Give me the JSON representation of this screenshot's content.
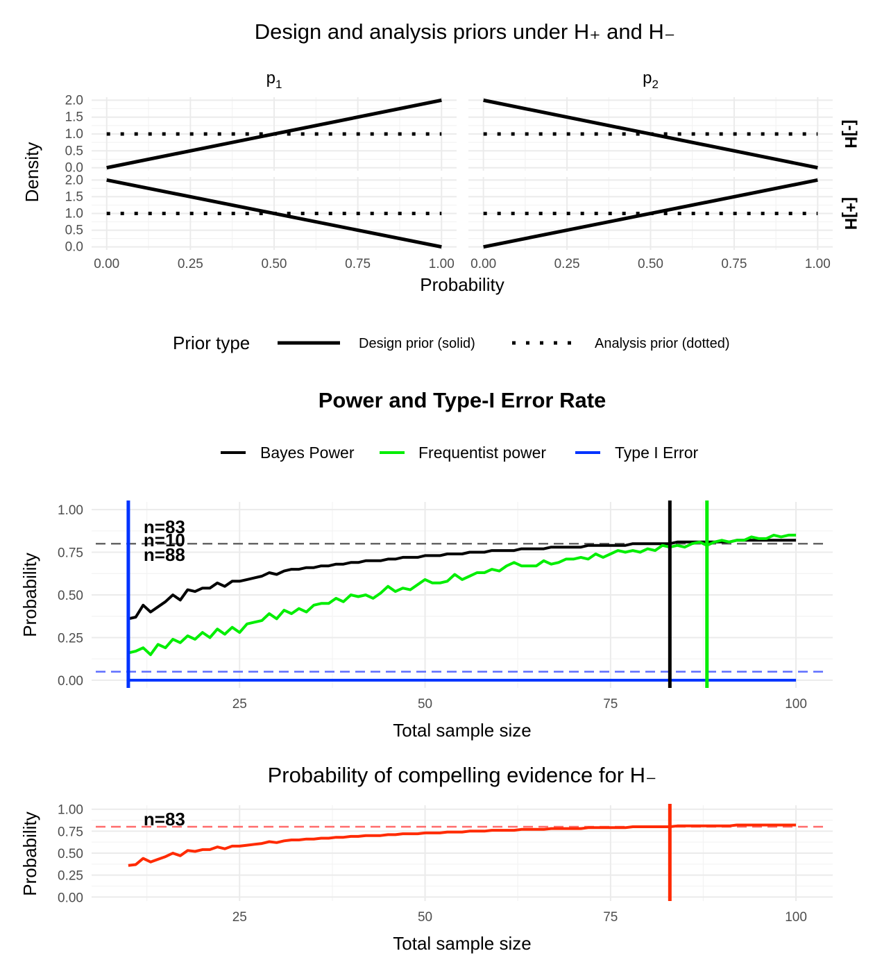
{
  "chart_data": [
    {
      "type": "line",
      "title": "Design and analysis priors under H₊ and H₋",
      "xlabel": "Probability",
      "ylabel": "Density",
      "xlim": [
        0,
        1
      ],
      "ylim": [
        0,
        2
      ],
      "x_ticks": [
        "0.00",
        "0.25",
        "0.50",
        "0.75",
        "1.00"
      ],
      "y_ticks": [
        "0.0",
        "0.5",
        "1.0",
        "1.5",
        "2.0"
      ],
      "facet_columns": [
        "p1",
        "p2"
      ],
      "facet_rows": [
        "[-]H",
        "[+]H"
      ],
      "legend": {
        "title": "Prior type",
        "position": "bottom",
        "entries": [
          "Design prior (solid)",
          "Analysis prior (dotted)"
        ]
      },
      "panels": [
        {
          "row": "[-]H",
          "col": "p1",
          "design": [
            [
              0,
              0
            ],
            [
              1,
              2
            ]
          ],
          "analysis": [
            [
              0,
              1
            ],
            [
              1,
              1
            ]
          ]
        },
        {
          "row": "[-]H",
          "col": "p2",
          "design": [
            [
              0,
              2
            ],
            [
              1,
              0
            ]
          ],
          "analysis": [
            [
              0,
              1
            ],
            [
              1,
              1
            ]
          ]
        },
        {
          "row": "[+]H",
          "col": "p1",
          "design": [
            [
              0,
              2
            ],
            [
              1,
              0
            ]
          ],
          "analysis": [
            [
              0,
              1
            ],
            [
              1,
              1
            ]
          ]
        },
        {
          "row": "[+]H",
          "col": "p2",
          "design": [
            [
              0,
              0
            ],
            [
              1,
              2
            ]
          ],
          "analysis": [
            [
              0,
              1
            ],
            [
              1,
              1
            ]
          ]
        }
      ],
      "grid": true
    },
    {
      "type": "line",
      "title": "Power and Type-I Error Rate",
      "xlabel": "Total sample size",
      "ylabel": "Probability",
      "xlim": [
        10,
        100
      ],
      "ylim": [
        0,
        1
      ],
      "x_ticks": [
        "25",
        "50",
        "75",
        "100"
      ],
      "y_ticks": [
        "0.00",
        "0.25",
        "0.50",
        "0.75",
        "1.00"
      ],
      "legend": {
        "position": "top",
        "entries": [
          "Bayes Power",
          "Frequentist power",
          "Type I Error"
        ]
      },
      "reference_lines": [
        {
          "y": 0.8,
          "color": "#666666",
          "style": "dashed"
        },
        {
          "y": 0.05,
          "color": "#5b6cff",
          "style": "dashed"
        }
      ],
      "vertical_lines": [
        {
          "x": 10,
          "color": "#0033ff"
        },
        {
          "x": 83,
          "color": "#000000"
        },
        {
          "x": 88,
          "color": "#00ee00"
        }
      ],
      "annotations": [
        {
          "text": "n=83",
          "color": "#000000"
        },
        {
          "text": "n=10",
          "color": "#0033ff"
        },
        {
          "text": "n=88",
          "color": "#00ee00"
        }
      ],
      "series": [
        {
          "name": "Bayes Power",
          "color": "#000000",
          "x": [
            10,
            11,
            12,
            13,
            14,
            15,
            16,
            17,
            18,
            19,
            20,
            21,
            22,
            23,
            24,
            25,
            26,
            27,
            28,
            29,
            30,
            31,
            32,
            33,
            34,
            35,
            36,
            37,
            38,
            39,
            40,
            41,
            42,
            43,
            44,
            45,
            46,
            47,
            48,
            49,
            50,
            51,
            52,
            53,
            54,
            55,
            56,
            57,
            58,
            59,
            60,
            61,
            62,
            63,
            64,
            65,
            66,
            67,
            68,
            69,
            70,
            71,
            72,
            73,
            74,
            75,
            76,
            77,
            78,
            79,
            80,
            81,
            82,
            83,
            84,
            85,
            86,
            87,
            88,
            89,
            90,
            91,
            92,
            93,
            94,
            95,
            96,
            97,
            98,
            99,
            100
          ],
          "values": [
            0.36,
            0.37,
            0.44,
            0.4,
            0.43,
            0.46,
            0.5,
            0.47,
            0.53,
            0.52,
            0.54,
            0.54,
            0.57,
            0.55,
            0.58,
            0.58,
            0.59,
            0.6,
            0.61,
            0.63,
            0.62,
            0.64,
            0.65,
            0.65,
            0.66,
            0.66,
            0.67,
            0.67,
            0.68,
            0.68,
            0.69,
            0.69,
            0.7,
            0.7,
            0.7,
            0.71,
            0.71,
            0.72,
            0.72,
            0.72,
            0.73,
            0.73,
            0.73,
            0.74,
            0.74,
            0.74,
            0.75,
            0.75,
            0.75,
            0.76,
            0.76,
            0.76,
            0.76,
            0.77,
            0.77,
            0.77,
            0.77,
            0.78,
            0.78,
            0.78,
            0.78,
            0.78,
            0.79,
            0.79,
            0.79,
            0.79,
            0.79,
            0.79,
            0.8,
            0.8,
            0.8,
            0.8,
            0.8,
            0.8,
            0.81,
            0.81,
            0.81,
            0.81,
            0.81,
            0.81,
            0.81,
            0.81,
            0.82,
            0.82,
            0.82,
            0.82,
            0.82,
            0.82,
            0.82,
            0.82,
            0.82
          ]
        },
        {
          "name": "Frequentist power",
          "color": "#00ee00",
          "x": [
            10,
            11,
            12,
            13,
            14,
            15,
            16,
            17,
            18,
            19,
            20,
            21,
            22,
            23,
            24,
            25,
            26,
            27,
            28,
            29,
            30,
            31,
            32,
            33,
            34,
            35,
            36,
            37,
            38,
            39,
            40,
            41,
            42,
            43,
            44,
            45,
            46,
            47,
            48,
            49,
            50,
            51,
            52,
            53,
            54,
            55,
            56,
            57,
            58,
            59,
            60,
            61,
            62,
            63,
            64,
            65,
            66,
            67,
            68,
            69,
            70,
            71,
            72,
            73,
            74,
            75,
            76,
            77,
            78,
            79,
            80,
            81,
            82,
            83,
            84,
            85,
            86,
            87,
            88,
            89,
            90,
            91,
            92,
            93,
            94,
            95,
            96,
            97,
            98,
            99,
            100
          ],
          "values": [
            0.16,
            0.17,
            0.19,
            0.15,
            0.21,
            0.19,
            0.24,
            0.22,
            0.26,
            0.24,
            0.28,
            0.25,
            0.3,
            0.27,
            0.31,
            0.28,
            0.33,
            0.34,
            0.35,
            0.39,
            0.36,
            0.41,
            0.39,
            0.42,
            0.4,
            0.44,
            0.45,
            0.45,
            0.48,
            0.46,
            0.5,
            0.49,
            0.5,
            0.48,
            0.51,
            0.55,
            0.52,
            0.54,
            0.53,
            0.56,
            0.59,
            0.57,
            0.57,
            0.58,
            0.62,
            0.59,
            0.61,
            0.63,
            0.63,
            0.65,
            0.64,
            0.67,
            0.69,
            0.67,
            0.67,
            0.67,
            0.7,
            0.68,
            0.69,
            0.71,
            0.71,
            0.72,
            0.71,
            0.74,
            0.72,
            0.74,
            0.76,
            0.75,
            0.76,
            0.75,
            0.77,
            0.76,
            0.79,
            0.78,
            0.79,
            0.78,
            0.8,
            0.81,
            0.79,
            0.81,
            0.82,
            0.81,
            0.82,
            0.82,
            0.84,
            0.83,
            0.83,
            0.85,
            0.84,
            0.85,
            0.85
          ]
        },
        {
          "name": "Type I Error",
          "color": "#0033ff",
          "x": [
            10,
            100
          ],
          "values": [
            0.0,
            0.0
          ]
        }
      ],
      "grid": true
    },
    {
      "type": "line",
      "title": "Probability of compelling evidence for H₋",
      "xlabel": "Total sample size",
      "ylabel": "Probability",
      "xlim": [
        10,
        100
      ],
      "ylim": [
        0,
        1
      ],
      "x_ticks": [
        "25",
        "50",
        "75",
        "100"
      ],
      "y_ticks": [
        "0.00",
        "0.25",
        "0.50",
        "0.75",
        "1.00"
      ],
      "reference_lines": [
        {
          "y": 0.8,
          "color": "#ff6b6b",
          "style": "dashed"
        }
      ],
      "vertical_lines": [
        {
          "x": 83,
          "color": "#ff2a00"
        }
      ],
      "annotations": [
        {
          "text": "n=83",
          "color": "#ff2a00"
        }
      ],
      "series": [
        {
          "color": "#ff2a00",
          "x": [
            10,
            11,
            12,
            13,
            14,
            15,
            16,
            17,
            18,
            19,
            20,
            21,
            22,
            23,
            24,
            25,
            26,
            27,
            28,
            29,
            30,
            31,
            32,
            33,
            34,
            35,
            36,
            37,
            38,
            39,
            40,
            41,
            42,
            43,
            44,
            45,
            46,
            47,
            48,
            49,
            50,
            51,
            52,
            53,
            54,
            55,
            56,
            57,
            58,
            59,
            60,
            61,
            62,
            63,
            64,
            65,
            66,
            67,
            68,
            69,
            70,
            71,
            72,
            73,
            74,
            75,
            76,
            77,
            78,
            79,
            80,
            81,
            82,
            83,
            84,
            85,
            86,
            87,
            88,
            89,
            90,
            91,
            92,
            93,
            94,
            95,
            96,
            97,
            98,
            99,
            100
          ],
          "values": [
            0.36,
            0.37,
            0.44,
            0.4,
            0.43,
            0.46,
            0.5,
            0.47,
            0.53,
            0.52,
            0.54,
            0.54,
            0.57,
            0.55,
            0.58,
            0.58,
            0.59,
            0.6,
            0.61,
            0.63,
            0.62,
            0.64,
            0.65,
            0.65,
            0.66,
            0.66,
            0.67,
            0.67,
            0.68,
            0.68,
            0.69,
            0.69,
            0.7,
            0.7,
            0.7,
            0.71,
            0.71,
            0.72,
            0.72,
            0.72,
            0.73,
            0.73,
            0.73,
            0.74,
            0.74,
            0.74,
            0.75,
            0.75,
            0.75,
            0.76,
            0.76,
            0.76,
            0.76,
            0.77,
            0.77,
            0.77,
            0.77,
            0.78,
            0.78,
            0.78,
            0.78,
            0.78,
            0.79,
            0.79,
            0.79,
            0.79,
            0.79,
            0.79,
            0.8,
            0.8,
            0.8,
            0.8,
            0.8,
            0.8,
            0.81,
            0.81,
            0.81,
            0.81,
            0.81,
            0.81,
            0.81,
            0.81,
            0.82,
            0.82,
            0.82,
            0.82,
            0.82,
            0.82,
            0.82,
            0.82,
            0.82
          ]
        }
      ],
      "grid": true
    }
  ]
}
